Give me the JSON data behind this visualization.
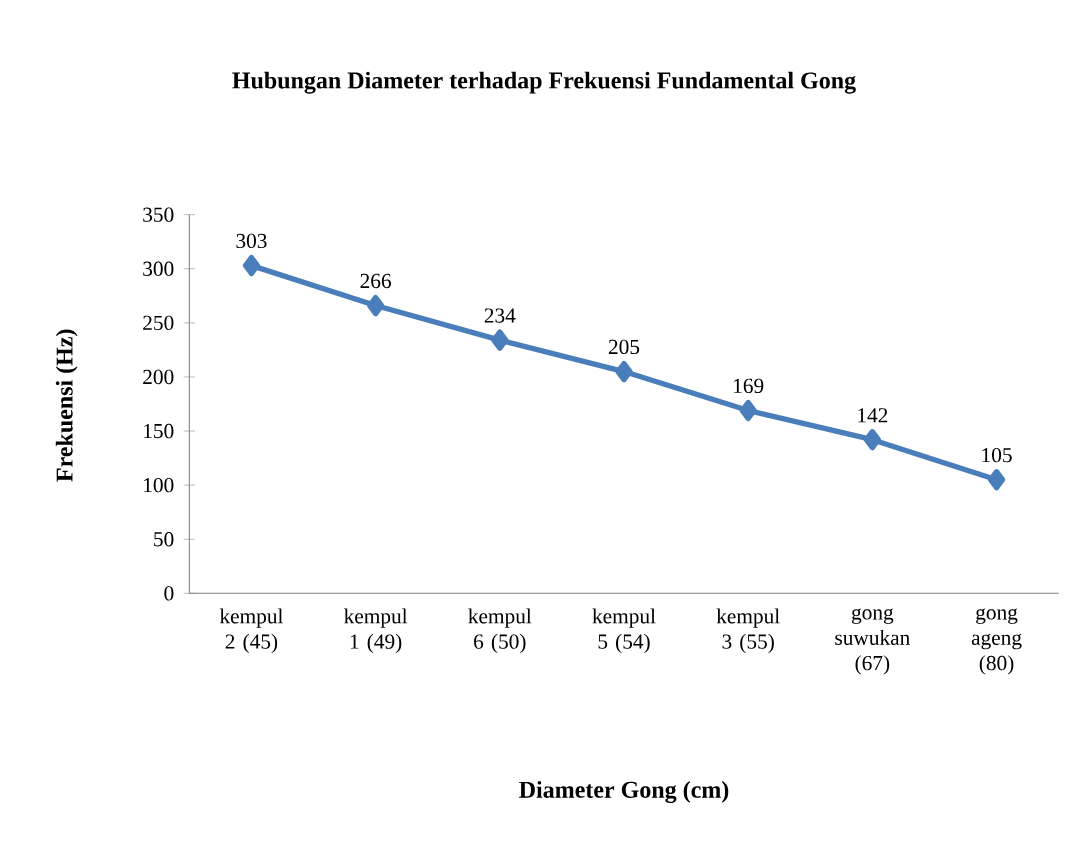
{
  "chart_data": {
    "type": "line",
    "title": "Hubungan Diameter terhadap Frekuensi Fundamental Gong",
    "xlabel": "Diameter Gong (cm)",
    "ylabel": "Frekuensi (Hz)",
    "categories": [
      "kempul 2 (45)",
      "kempul 1 (49)",
      "kempul 6 (50)",
      "kempul 5 (54)",
      "kempul 3 (55)",
      "gong suwukan (67)",
      "gong ageng (80)"
    ],
    "values": [
      303,
      266,
      234,
      205,
      169,
      142,
      105
    ],
    "color": "#4a7ebb",
    "marker": "diamond",
    "data_labels": true,
    "ylim": [
      0,
      350
    ],
    "yticks": [
      0,
      50,
      100,
      150,
      200,
      250,
      300,
      350
    ]
  }
}
